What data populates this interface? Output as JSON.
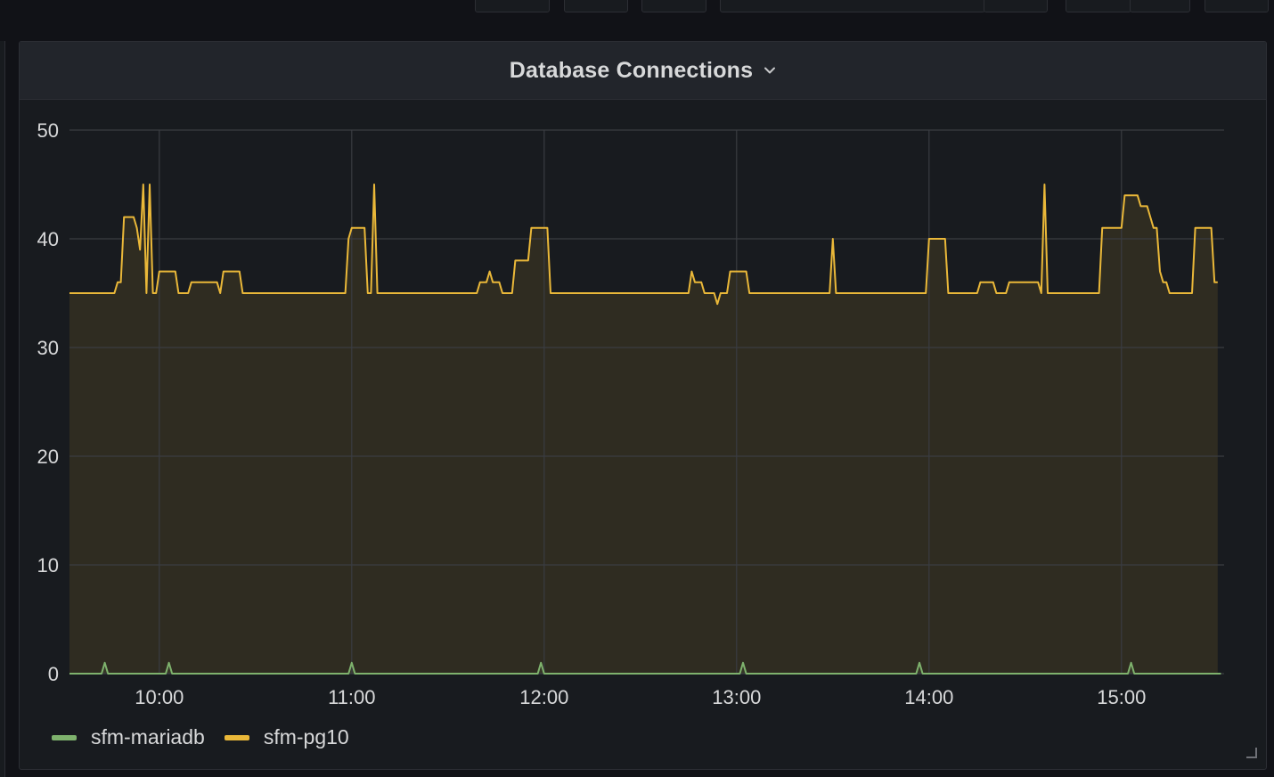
{
  "panel": {
    "title": "Database Connections"
  },
  "colors": {
    "mariadb": "#7eb26d",
    "pg10": "#eab839",
    "grid": "#3a3c42",
    "text": "#d8d9da"
  },
  "icons": {
    "title_menu": "chevron-down-icon",
    "resize": "resize-handle-icon"
  },
  "chart_data": {
    "type": "area",
    "title": "Database Connections",
    "xlabel": "",
    "ylabel": "",
    "xlim": [
      "09:32",
      "15:32"
    ],
    "ylim": [
      0,
      50
    ],
    "yticks": [
      0,
      10,
      20,
      30,
      40,
      50
    ],
    "xticks": [
      "10:00",
      "11:00",
      "12:00",
      "13:00",
      "14:00",
      "15:00"
    ],
    "grid": true,
    "legend_position": "bottom-left",
    "series": [
      {
        "name": "sfm-mariadb",
        "points": [
          [
            "09:32",
            0
          ],
          [
            "09:42",
            0
          ],
          [
            "09:43",
            1
          ],
          [
            "09:44",
            0
          ],
          [
            "10:02",
            0
          ],
          [
            "10:03",
            1
          ],
          [
            "10:04",
            0
          ],
          [
            "10:59",
            0
          ],
          [
            "11:00",
            1
          ],
          [
            "11:01",
            0
          ],
          [
            "11:58",
            0
          ],
          [
            "11:59",
            1
          ],
          [
            "12:00",
            0
          ],
          [
            "13:01",
            0
          ],
          [
            "13:02",
            1
          ],
          [
            "13:03",
            0
          ],
          [
            "13:56",
            0
          ],
          [
            "13:57",
            1
          ],
          [
            "13:58",
            0
          ],
          [
            "15:02",
            0
          ],
          [
            "15:03",
            1
          ],
          [
            "15:04",
            0
          ],
          [
            "15:31",
            0
          ]
        ]
      },
      {
        "name": "sfm-pg10",
        "points": [
          [
            "09:32",
            35
          ],
          [
            "09:46",
            35
          ],
          [
            "09:47",
            36
          ],
          [
            "09:48",
            36
          ],
          [
            "09:49",
            42
          ],
          [
            "09:52",
            42
          ],
          [
            "09:53",
            41
          ],
          [
            "09:54",
            39
          ],
          [
            "09:55",
            45
          ],
          [
            "09:56",
            35
          ],
          [
            "09:57",
            45
          ],
          [
            "09:58",
            35
          ],
          [
            "09:59",
            35
          ],
          [
            "10:00",
            37
          ],
          [
            "10:05",
            37
          ],
          [
            "10:06",
            35
          ],
          [
            "10:09",
            35
          ],
          [
            "10:10",
            36
          ],
          [
            "10:18",
            36
          ],
          [
            "10:19",
            35
          ],
          [
            "10:20",
            37
          ],
          [
            "10:25",
            37
          ],
          [
            "10:26",
            35
          ],
          [
            "10:58",
            35
          ],
          [
            "10:59",
            40
          ],
          [
            "11:00",
            41
          ],
          [
            "11:04",
            41
          ],
          [
            "11:05",
            35
          ],
          [
            "11:06",
            35
          ],
          [
            "11:07",
            45
          ],
          [
            "11:08",
            35
          ],
          [
            "11:39",
            35
          ],
          [
            "11:40",
            36
          ],
          [
            "11:42",
            36
          ],
          [
            "11:43",
            37
          ],
          [
            "11:44",
            36
          ],
          [
            "11:46",
            36
          ],
          [
            "11:47",
            35
          ],
          [
            "11:50",
            35
          ],
          [
            "11:51",
            38
          ],
          [
            "11:55",
            38
          ],
          [
            "11:56",
            41
          ],
          [
            "12:01",
            41
          ],
          [
            "12:02",
            35
          ],
          [
            "12:45",
            35
          ],
          [
            "12:46",
            37
          ],
          [
            "12:47",
            36
          ],
          [
            "12:49",
            36
          ],
          [
            "12:50",
            35
          ],
          [
            "12:53",
            35
          ],
          [
            "12:54",
            34
          ],
          [
            "12:55",
            35
          ],
          [
            "12:57",
            35
          ],
          [
            "12:58",
            37
          ],
          [
            "13:03",
            37
          ],
          [
            "13:04",
            35
          ],
          [
            "13:29",
            35
          ],
          [
            "13:30",
            40
          ],
          [
            "13:31",
            35
          ],
          [
            "13:59",
            35
          ],
          [
            "14:00",
            40
          ],
          [
            "14:05",
            40
          ],
          [
            "14:06",
            35
          ],
          [
            "14:15",
            35
          ],
          [
            "14:16",
            36
          ],
          [
            "14:20",
            36
          ],
          [
            "14:21",
            35
          ],
          [
            "14:24",
            35
          ],
          [
            "14:25",
            36
          ],
          [
            "14:34",
            36
          ],
          [
            "14:35",
            35
          ],
          [
            "14:36",
            45
          ],
          [
            "14:37",
            35
          ],
          [
            "14:53",
            35
          ],
          [
            "14:54",
            41
          ],
          [
            "15:00",
            41
          ],
          [
            "15:01",
            44
          ],
          [
            "15:05",
            44
          ],
          [
            "15:06",
            43
          ],
          [
            "15:08",
            43
          ],
          [
            "15:09",
            42
          ],
          [
            "15:10",
            41
          ],
          [
            "15:11",
            41
          ],
          [
            "15:12",
            37
          ],
          [
            "15:13",
            36
          ],
          [
            "15:14",
            36
          ],
          [
            "15:15",
            35
          ],
          [
            "15:22",
            35
          ],
          [
            "15:23",
            41
          ],
          [
            "15:28",
            41
          ],
          [
            "15:29",
            36
          ],
          [
            "15:30",
            36
          ]
        ]
      }
    ]
  },
  "legend": {
    "items": [
      {
        "label": "sfm-mariadb"
      },
      {
        "label": "sfm-pg10"
      }
    ]
  }
}
